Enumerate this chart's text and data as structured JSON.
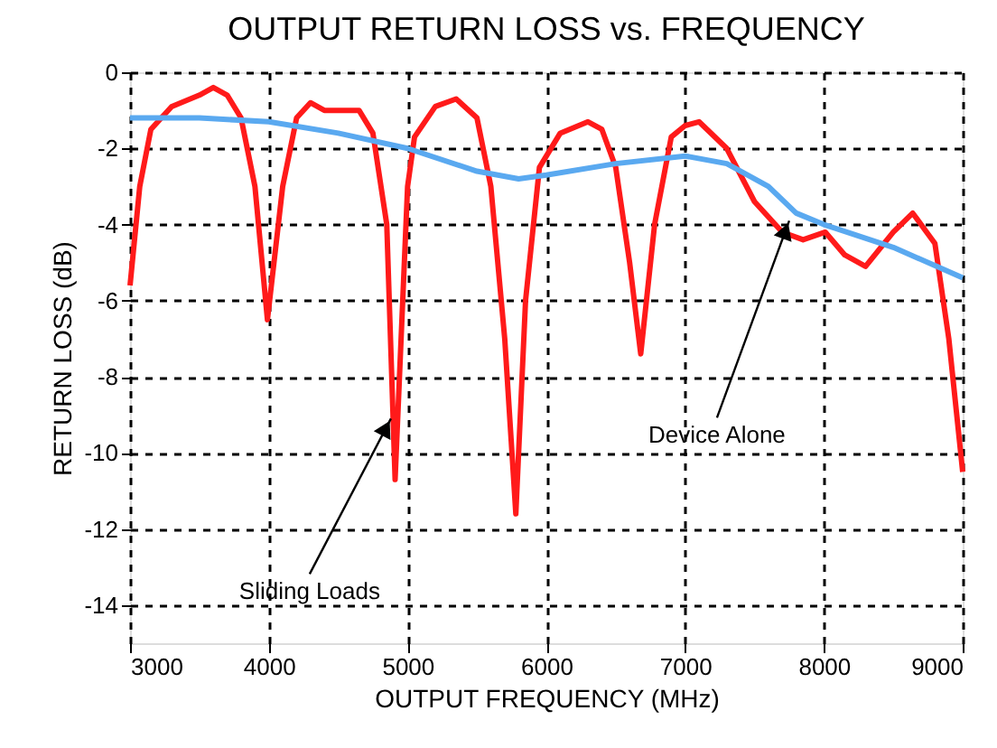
{
  "chart_data": {
    "type": "line",
    "title": "OUTPUT RETURN LOSS vs. FREQUENCY",
    "xlabel": "OUTPUT FREQUENCY (MHz)",
    "ylabel": "RETURN LOSS (dB)",
    "xlim": [
      3000,
      9000
    ],
    "xticks": [
      {
        "value": 3000,
        "label": "3000"
      },
      {
        "value": 4000,
        "label": "4000"
      },
      {
        "value": 5000,
        "label": "5000"
      },
      {
        "value": 6000,
        "label": "6000"
      },
      {
        "value": 7000,
        "label": "7000"
      },
      {
        "value": 8000,
        "label": "8000"
      },
      {
        "value": 9000,
        "label": "9000"
      }
    ],
    "ylim": [
      -15,
      0
    ],
    "yticks": [
      0,
      -2,
      -4,
      -6,
      -8,
      -10,
      -12,
      -14
    ],
    "grid": true,
    "legend": false,
    "line_style": "solid",
    "marker": "none",
    "series": [
      {
        "color": "#ff1a1a",
        "x": [
          3000,
          3070,
          3150,
          3300,
          3500,
          3600,
          3700,
          3800,
          3900,
          3990,
          4100,
          4200,
          4300,
          4400,
          4500,
          4650,
          4750,
          4850,
          4910,
          5000,
          5050,
          5200,
          5350,
          5500,
          5600,
          5700,
          5780,
          5850,
          5950,
          6100,
          6300,
          6400,
          6500,
          6600,
          6680,
          6780,
          6900,
          7000,
          7100,
          7300,
          7500,
          7700,
          7850,
          8010,
          8150,
          8300,
          8500,
          8640,
          8800,
          8900,
          9000
        ],
        "values": [
          -5.6,
          -3.0,
          -1.5,
          -0.9,
          -0.6,
          -0.4,
          -0.6,
          -1.2,
          -3.0,
          -6.5,
          -3.0,
          -1.2,
          -0.8,
          -1.0,
          -1.0,
          -1.0,
          -1.6,
          -4.0,
          -10.7,
          -3.0,
          -1.7,
          -0.9,
          -0.7,
          -1.2,
          -3.0,
          -7.0,
          -11.6,
          -6.0,
          -2.5,
          -1.6,
          -1.3,
          -1.5,
          -2.5,
          -5.0,
          -7.4,
          -4.0,
          -1.7,
          -1.4,
          -1.3,
          -2.0,
          -3.4,
          -4.2,
          -4.4,
          -4.2,
          -4.8,
          -5.1,
          -4.2,
          -3.7,
          -4.5,
          -7.0,
          -10.5
        ]
      },
      {
        "color": "#5aa9f0",
        "x": [
          3000,
          3500,
          4000,
          4500,
          5000,
          5500,
          5800,
          6000,
          6500,
          7000,
          7300,
          7600,
          7800,
          8000,
          8500,
          9000
        ],
        "values": [
          -1.2,
          -1.2,
          -1.3,
          -1.6,
          -2.0,
          -2.6,
          -2.8,
          -2.7,
          -2.4,
          -2.2,
          -2.4,
          -3.0,
          -3.7,
          -4.0,
          -4.6,
          -5.4
        ]
      }
    ],
    "annotations": [
      {
        "text": "Sliding Loads",
        "x": 4880,
        "y": -9.1
      },
      {
        "text": "Device Alone",
        "x": 7750,
        "y": -3.9
      }
    ]
  }
}
